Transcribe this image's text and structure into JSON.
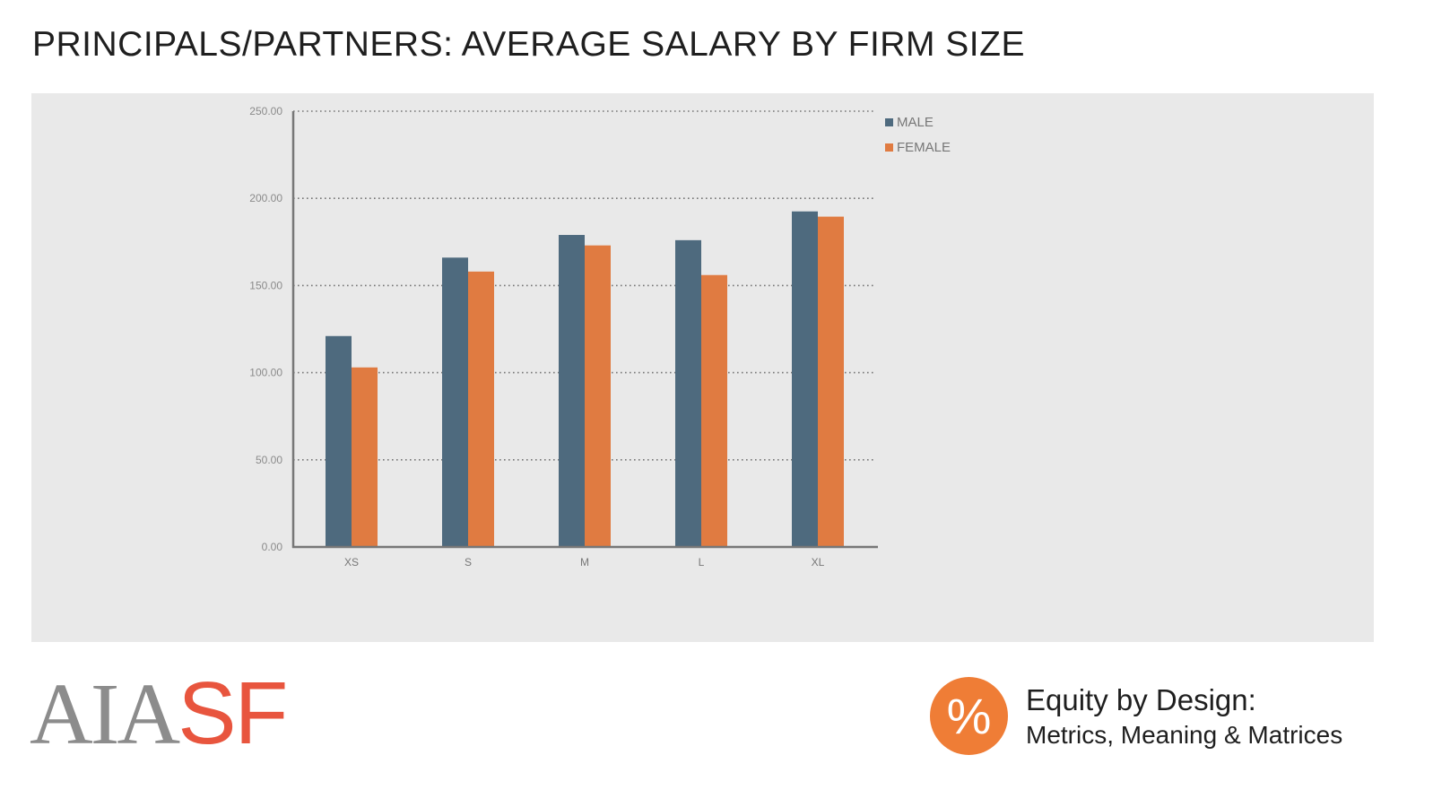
{
  "title": "PRINCIPALS/PARTNERS: AVERAGE SALARY BY FIRM SIZE",
  "chart_data": {
    "type": "bar",
    "categories": [
      "XS",
      "S",
      "M",
      "L",
      "XL"
    ],
    "series": [
      {
        "name": "MALE",
        "color": "#4e6a7e",
        "values": [
          121,
          166,
          179,
          176,
          192.5
        ]
      },
      {
        "name": "FEMALE",
        "color": "#e07b41",
        "values": [
          103,
          158,
          173,
          156,
          189.5
        ]
      }
    ],
    "ylim": [
      0,
      250
    ],
    "yticks": [
      0,
      50,
      100,
      150,
      200,
      250
    ],
    "ytick_labels": [
      "0.00",
      "50.00",
      "100.00",
      "150.00",
      "200.00",
      "250.00"
    ],
    "grid": true,
    "legend_position": "top-right"
  },
  "logo": {
    "part1": "AIA",
    "part2": "SF"
  },
  "branding": {
    "badge_symbol": "%",
    "title": "Equity by Design:",
    "subtitle": "Metrics, Meaning & Matrices"
  }
}
